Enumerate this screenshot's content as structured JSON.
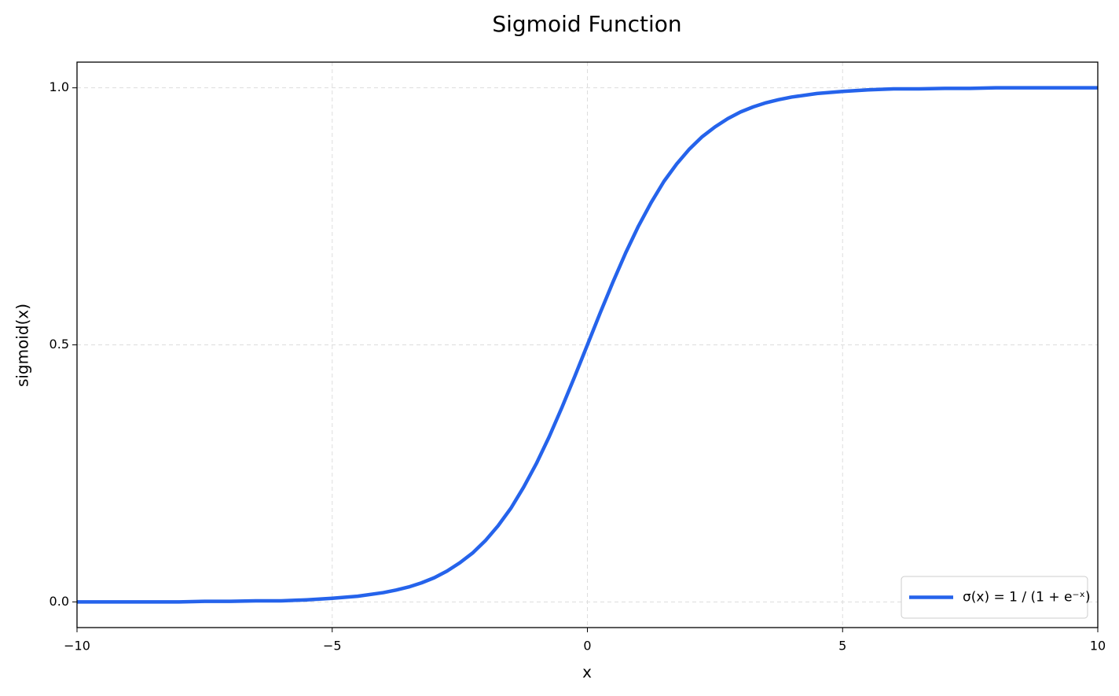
{
  "chart_data": {
    "type": "line",
    "title": "Sigmoid Function",
    "x_label": "x",
    "y_label": "sigmoid(x)",
    "x": [
      -10,
      -9.5,
      -9,
      -8.5,
      -8,
      -7.5,
      -7,
      -6.5,
      -6,
      -5.5,
      -5,
      -4.5,
      -4,
      -3.75,
      -3.5,
      -3.25,
      -3,
      -2.75,
      -2.5,
      -2.25,
      -2,
      -1.75,
      -1.5,
      -1.25,
      -1,
      -0.75,
      -0.5,
      -0.25,
      0,
      0.25,
      0.5,
      0.75,
      1,
      1.25,
      1.5,
      1.75,
      2,
      2.25,
      2.5,
      2.75,
      3,
      3.25,
      3.5,
      3.75,
      4,
      4.5,
      5,
      5.5,
      6,
      6.5,
      7,
      7.5,
      8,
      8.5,
      9,
      9.5,
      10
    ],
    "series": [
      {
        "name": "σ(x) = 1 / (1 + e⁻ˣ)",
        "color": "#2563eb",
        "values": [
          0.0,
          0.0,
          0.0,
          0.0,
          0.0,
          0.001,
          0.001,
          0.002,
          0.002,
          0.004,
          0.007,
          0.011,
          0.018,
          0.023,
          0.029,
          0.037,
          0.047,
          0.06,
          0.076,
          0.095,
          0.119,
          0.148,
          0.182,
          0.223,
          0.269,
          0.321,
          0.378,
          0.438,
          0.5,
          0.562,
          0.622,
          0.679,
          0.731,
          0.777,
          0.818,
          0.852,
          0.881,
          0.905,
          0.924,
          0.94,
          0.953,
          0.963,
          0.971,
          0.977,
          0.982,
          0.989,
          0.993,
          0.996,
          0.998,
          0.998,
          0.999,
          0.999,
          1.0,
          1.0,
          1.0,
          1.0,
          1.0
        ]
      }
    ],
    "xlim": [
      -10,
      10
    ],
    "ylim": [
      -0.05,
      1.05
    ],
    "xticks": [
      {
        "value": -10,
        "label": "−10"
      },
      {
        "value": -5,
        "label": "−5"
      },
      0,
      5,
      10
    ],
    "yticks": [
      {
        "value": 0,
        "label": "0.0"
      },
      0.5,
      {
        "value": 1,
        "label": "1.0"
      }
    ],
    "grid": true,
    "legend": "lower right"
  }
}
